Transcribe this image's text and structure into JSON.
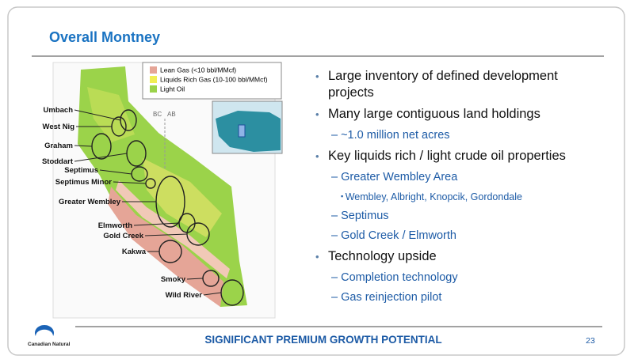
{
  "header": {
    "title": "Overall Montney"
  },
  "map": {
    "legend": [
      "Lean Gas (<10 bbl/MMcf)",
      "Liquids Rich Gas (10-100 bbl/MMcf)",
      "Light Oil"
    ],
    "border_labels": [
      "BC",
      "AB"
    ],
    "areas": [
      "Umbach",
      "West Nig",
      "Graham",
      "Stoddart",
      "Septimus",
      "Septimus Minor",
      "Greater Wembley",
      "Elmworth",
      "Gold Creek",
      "Kakwa",
      "Smoky",
      "Wild River"
    ]
  },
  "bullets": [
    {
      "text": "Large inventory of defined development projects"
    },
    {
      "text": "Many large contiguous land holdings",
      "sub": [
        {
          "text": "~1.0 million net acres"
        }
      ]
    },
    {
      "text": "Key liquids rich / light crude oil properties",
      "sub": [
        {
          "text": "Greater Wembley Area",
          "sub": [
            {
              "text": "Wembley, Albright, Knopcik, Gordondale"
            }
          ]
        },
        {
          "text": "Septimus"
        },
        {
          "text": "Gold Creek / Elmworth"
        }
      ]
    },
    {
      "text": "Technology upside",
      "sub": [
        {
          "text": "Completion technology"
        },
        {
          "text": "Gas reinjection pilot"
        }
      ]
    }
  ],
  "footer": {
    "tagline": "SIGNIFICANT PREMIUM GROWTH POTENTIAL",
    "page": "23",
    "logo": "Canadian Natural"
  }
}
